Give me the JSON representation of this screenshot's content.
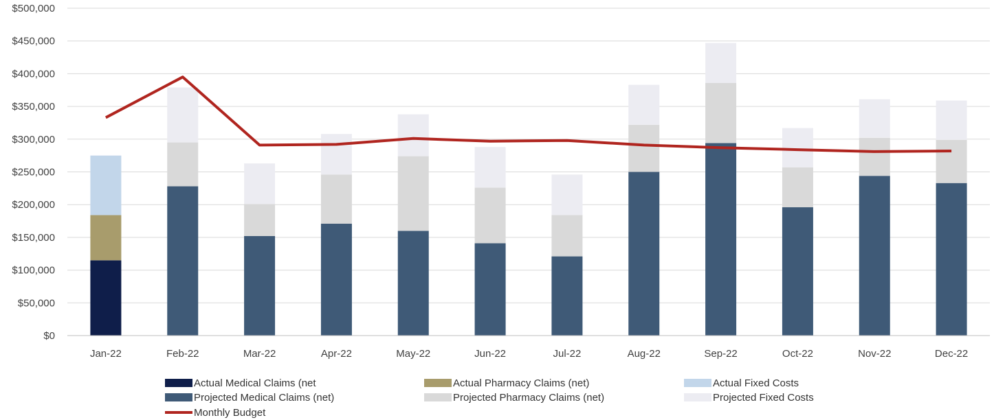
{
  "chart_data": {
    "type": "bar",
    "stacked": true,
    "categories": [
      "Jan-22",
      "Feb-22",
      "Mar-22",
      "Apr-22",
      "May-22",
      "Jun-22",
      "Jul-22",
      "Aug-22",
      "Sep-22",
      "Oct-22",
      "Nov-22",
      "Dec-22"
    ],
    "ylim": [
      0,
      500000
    ],
    "yticks": [
      0,
      50000,
      100000,
      150000,
      200000,
      250000,
      300000,
      350000,
      400000,
      450000,
      500000
    ],
    "ytick_labels": [
      "$0",
      "$50,000",
      "$100,000",
      "$150,000",
      "$200,000",
      "$250,000",
      "$300,000",
      "$350,000",
      "$400,000",
      "$450,000",
      "$500,000"
    ],
    "grid": true,
    "legend_position": "bottom",
    "series": [
      {
        "name": "Actual Medical Claims (net",
        "kind": "bar",
        "color": "#0f1e4a",
        "values": [
          115000,
          0,
          0,
          0,
          0,
          0,
          0,
          0,
          0,
          0,
          0,
          0
        ]
      },
      {
        "name": "Actual Pharmacy Claims (net)",
        "kind": "bar",
        "color": "#a89c6c",
        "values": [
          69000,
          0,
          0,
          0,
          0,
          0,
          0,
          0,
          0,
          0,
          0,
          0
        ]
      },
      {
        "name": "Actual Fixed Costs",
        "kind": "bar",
        "color": "#c2d6ea",
        "values": [
          91000,
          0,
          0,
          0,
          0,
          0,
          0,
          0,
          0,
          0,
          0,
          0
        ]
      },
      {
        "name": "Projected Medical Claims (net)",
        "kind": "bar",
        "color": "#3f5a77",
        "values": [
          0,
          228000,
          152000,
          171000,
          160000,
          141000,
          121000,
          250000,
          294000,
          196000,
          244000,
          233000
        ]
      },
      {
        "name": "Projected Pharmacy Claims (net)",
        "kind": "bar",
        "color": "#d9d9d9",
        "values": [
          0,
          67000,
          49000,
          75000,
          114000,
          85000,
          63000,
          72000,
          92000,
          61000,
          58000,
          66000
        ]
      },
      {
        "name": "Projected Fixed Costs",
        "kind": "bar",
        "color": "#ececf2",
        "values": [
          0,
          84000,
          62000,
          62000,
          64000,
          62000,
          62000,
          61000,
          61000,
          60000,
          59000,
          60000
        ]
      },
      {
        "name": "Monthly Budget",
        "kind": "line",
        "color": "#b0251f",
        "values": [
          333000,
          395000,
          291000,
          292000,
          301000,
          297000,
          298000,
          291000,
          287000,
          284000,
          281000,
          282000
        ]
      }
    ]
  }
}
